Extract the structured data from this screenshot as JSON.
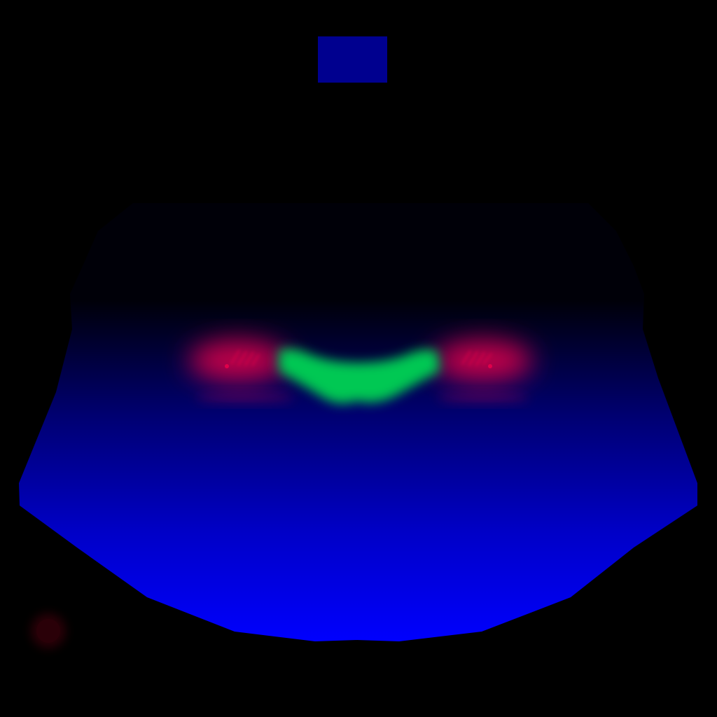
{
  "colors": {
    "background": "#000000",
    "indicator_box": "#00008f",
    "field_top": "#000008",
    "field_mid": "#000070",
    "field_bottom": "#0000ff",
    "center_structure": "#00c853",
    "side_structure": "#e0004a",
    "corner_marker": "#2a0008"
  },
  "icons": {
    "indicator": "blue-indicator-box",
    "structure": "segmented-structure",
    "markers": "red-point-markers",
    "corner": "dark-red-dot"
  }
}
